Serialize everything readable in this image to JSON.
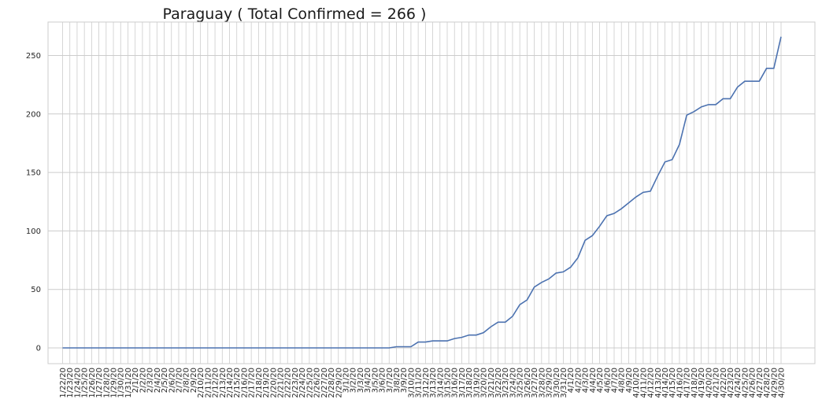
{
  "chart_data": {
    "type": "line",
    "title": "Paraguay ( Total Confirmed = 266 )",
    "xlabel": "",
    "ylabel": "",
    "ylim": [
      -14,
      280
    ],
    "yticks": [
      0,
      50,
      100,
      150,
      200,
      250
    ],
    "grid": true,
    "line_color": "#4c72b0",
    "categories": [
      "1/22/20",
      "1/23/20",
      "1/24/20",
      "1/25/20",
      "1/26/20",
      "1/27/20",
      "1/28/20",
      "1/29/20",
      "1/30/20",
      "1/31/20",
      "2/1/20",
      "2/2/20",
      "2/3/20",
      "2/4/20",
      "2/5/20",
      "2/6/20",
      "2/7/20",
      "2/8/20",
      "2/9/20",
      "2/10/20",
      "2/11/20",
      "2/12/20",
      "2/13/20",
      "2/14/20",
      "2/15/20",
      "2/16/20",
      "2/17/20",
      "2/18/20",
      "2/19/20",
      "2/20/20",
      "2/21/20",
      "2/22/20",
      "2/23/20",
      "2/24/20",
      "2/25/20",
      "2/26/20",
      "2/27/20",
      "2/28/20",
      "2/29/20",
      "3/1/20",
      "3/2/20",
      "3/3/20",
      "3/4/20",
      "3/5/20",
      "3/6/20",
      "3/7/20",
      "3/8/20",
      "3/9/20",
      "3/10/20",
      "3/11/20",
      "3/12/20",
      "3/13/20",
      "3/14/20",
      "3/15/20",
      "3/16/20",
      "3/17/20",
      "3/18/20",
      "3/19/20",
      "3/20/20",
      "3/21/20",
      "3/22/20",
      "3/23/20",
      "3/24/20",
      "3/25/20",
      "3/26/20",
      "3/27/20",
      "3/28/20",
      "3/29/20",
      "3/30/20",
      "3/31/20",
      "4/1/20",
      "4/2/20",
      "4/3/20",
      "4/4/20",
      "4/5/20",
      "4/6/20",
      "4/7/20",
      "4/8/20",
      "4/9/20",
      "4/10/20",
      "4/11/20",
      "4/12/20",
      "4/13/20",
      "4/14/20",
      "4/15/20",
      "4/16/20",
      "4/17/20",
      "4/18/20",
      "4/19/20",
      "4/20/20",
      "4/21/20",
      "4/22/20",
      "4/23/20",
      "4/24/20",
      "4/25/20",
      "4/26/20",
      "4/27/20",
      "4/28/20",
      "4/29/20",
      "4/30/20"
    ],
    "values": [
      0,
      0,
      0,
      0,
      0,
      0,
      0,
      0,
      0,
      0,
      0,
      0,
      0,
      0,
      0,
      0,
      0,
      0,
      0,
      0,
      0,
      0,
      0,
      0,
      0,
      0,
      0,
      0,
      0,
      0,
      0,
      0,
      0,
      0,
      0,
      0,
      0,
      0,
      0,
      0,
      0,
      0,
      0,
      0,
      0,
      0,
      1,
      1,
      1,
      5,
      5,
      6,
      6,
      6,
      8,
      9,
      11,
      11,
      13,
      18,
      22,
      22,
      27,
      37,
      41,
      52,
      56,
      59,
      64,
      65,
      69,
      77,
      92,
      96,
      104,
      113,
      115,
      119,
      124,
      129,
      133,
      134,
      147,
      159,
      161,
      174,
      199,
      202,
      206,
      208,
      208,
      213,
      213,
      223,
      228,
      228,
      228,
      239,
      239,
      266
    ]
  }
}
